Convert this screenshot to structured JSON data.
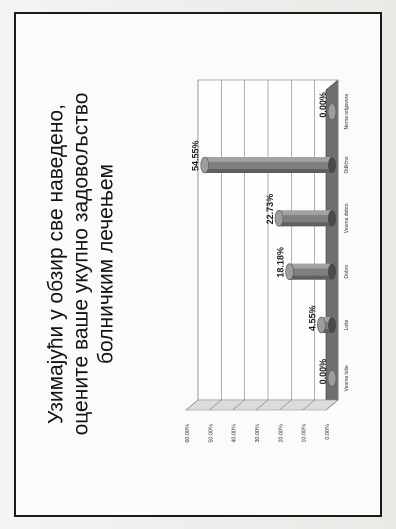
{
  "slide": {
    "title_lines": [
      "Узимајући у обзир све наведено,",
      "оцените ваше укупно задовољство",
      "болничким лечењем"
    ]
  },
  "chart_data": {
    "type": "bar",
    "orientation": "rotated-90-counterclockwise",
    "categories": [
      "Veoma loše",
      "Loše",
      "Dobro",
      "Veoma dobro",
      "Odlično",
      "Nema odgovora"
    ],
    "values": [
      0.0,
      4.55,
      18.18,
      22.73,
      54.55,
      0.0
    ],
    "data_labels": [
      "0.00%",
      "4.55%",
      "18.18%",
      "22.73%",
      "54.55%",
      "0.00%"
    ],
    "yticks": [
      "0.00%",
      "10.00%",
      "20.00%",
      "30.00%",
      "40.00%",
      "50.00%",
      "60.00%"
    ],
    "ylim": [
      0,
      60
    ],
    "grid": true,
    "colors": {
      "bar": "#7f7f7f",
      "bar_dark": "#4a4a4a",
      "bar_light": "#b9b9b9",
      "floor": "#6f6f6f"
    }
  }
}
